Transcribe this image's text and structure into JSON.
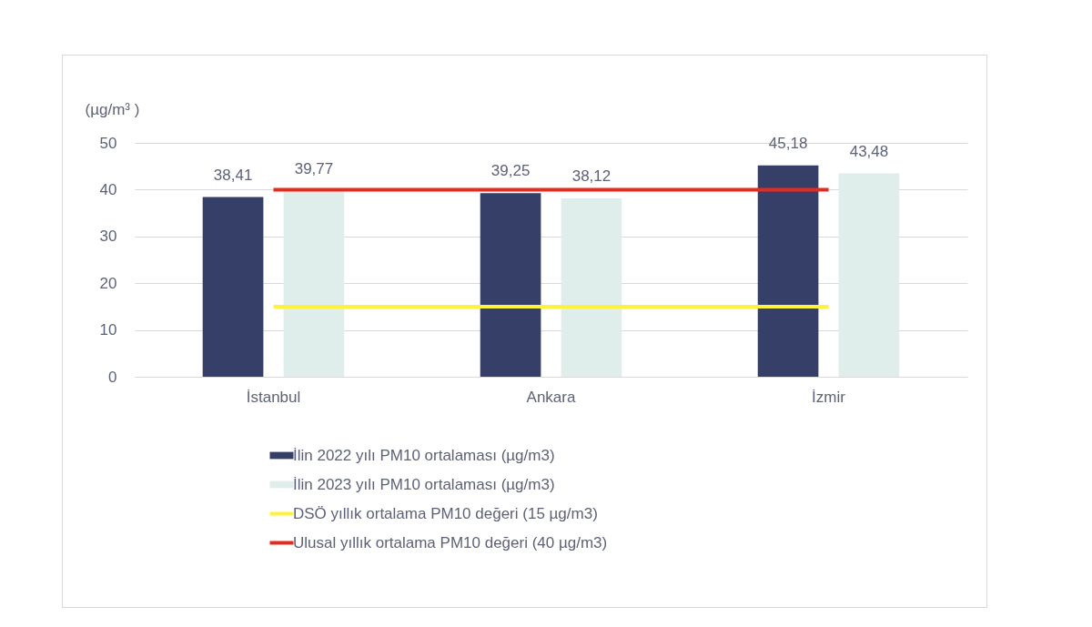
{
  "chart_data": {
    "type": "bar",
    "ylabel": "(µg/m³ )",
    "categories": [
      "İstanbul",
      "Ankara",
      "İzmir"
    ],
    "series": [
      {
        "name": "İlin 2022 yılı PM10 ortalaması (µg/m3)",
        "color": "#353f68",
        "values": [
          38.41,
          39.25,
          45.18
        ],
        "value_labels": [
          "38,41",
          "39,25",
          "45,18"
        ]
      },
      {
        "name": "İlin 2023 yılı PM10 ortalaması (µg/m3)",
        "color": "#e0eeeb",
        "values": [
          39.77,
          38.12,
          43.48
        ],
        "value_labels": [
          "39,77",
          "38,12",
          "43,48"
        ]
      }
    ],
    "ref_lines": [
      {
        "axis": "y",
        "value": 15,
        "label": "DSÖ yıllık ortalama PM10 değeri (15 µg/m3)",
        "color": "#fff23a"
      },
      {
        "axis": "y",
        "value": 40,
        "label": "Ulusal yıllık ortalama PM10 değeri (40 µg/m3)",
        "color": "#e8291c"
      }
    ],
    "ylim": [
      0,
      50
    ],
    "yticks": [
      0,
      10,
      20,
      30,
      40,
      50
    ],
    "grid": "y",
    "legend": "bottom"
  }
}
